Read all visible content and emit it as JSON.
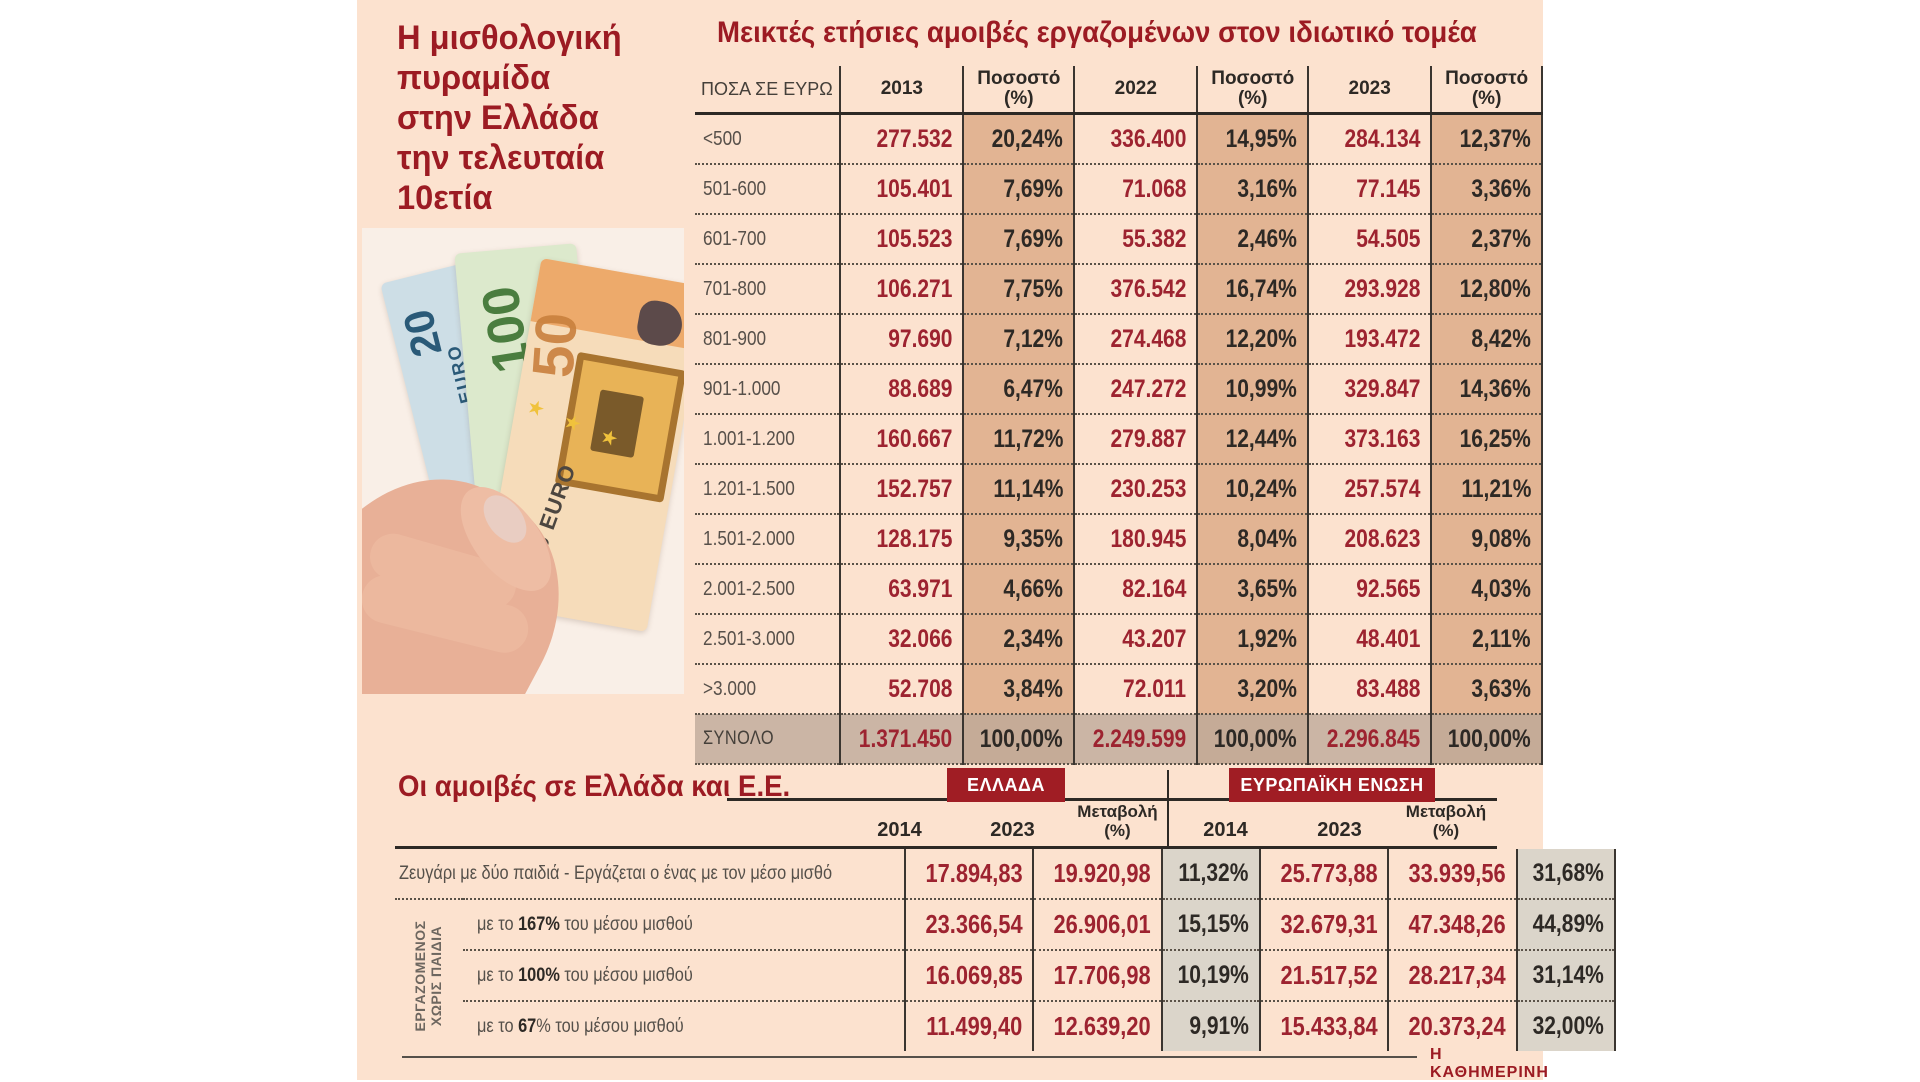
{
  "colors": {
    "page_background": "#ffffff",
    "panel_background": "#fce2cf",
    "accent_red": "#9c1b23",
    "value_red": "#9d2330",
    "tan_percent_column": "#e2b493",
    "total_row": "#cbb5a5",
    "change_column_gray": "#dbd5ca",
    "text_dark": "#2d2925",
    "text_gray": "#57504a"
  },
  "left_panel": {
    "title": "Η μισθολογική\nπυραμίδα\nστην Ελλάδα\nτην τελευταία\n10ετία",
    "photo": {
      "description": "hand holding 20, 100 and 50 euro banknotes",
      "notes": [
        {
          "value": "20",
          "currency": "EURO"
        },
        {
          "value": "100",
          "currency": ""
        },
        {
          "value": "50",
          "currency": "50 EURO"
        }
      ],
      "stars": "★ ★ ★"
    }
  },
  "gross_table": {
    "title": "Μεικτές ετήσιες αμοιβές εργαζομένων στον ιδιωτικό τομέα",
    "headers": [
      "ΠΟΣΑ ΣΕ ΕΥΡΩ",
      "2013",
      "Ποσοστό\n(%)",
      "2022",
      "Ποσοστό\n(%)",
      "2023",
      "Ποσοστό\n(%)"
    ],
    "rows": [
      {
        "range": "<500",
        "cells": [
          "277.532",
          "20,24%",
          "336.400",
          "14,95%",
          "284.134",
          "12,37%"
        ]
      },
      {
        "range": "501-600",
        "cells": [
          "105.401",
          "7,69%",
          "71.068",
          "3,16%",
          "77.145",
          "3,36%"
        ]
      },
      {
        "range": "601-700",
        "cells": [
          "105.523",
          "7,69%",
          "55.382",
          "2,46%",
          "54.505",
          "2,37%"
        ]
      },
      {
        "range": "701-800",
        "cells": [
          "106.271",
          "7,75%",
          "376.542",
          "16,74%",
          "293.928",
          "12,80%"
        ]
      },
      {
        "range": "801-900",
        "cells": [
          "97.690",
          "7,12%",
          "274.468",
          "12,20%",
          "193.472",
          "8,42%"
        ]
      },
      {
        "range": "901-1.000",
        "cells": [
          "88.689",
          "6,47%",
          "247.272",
          "10,99%",
          "329.847",
          "14,36%"
        ]
      },
      {
        "range": "1.001-1.200",
        "cells": [
          "160.667",
          "11,72%",
          "279.887",
          "12,44%",
          "373.163",
          "16,25%"
        ]
      },
      {
        "range": "1.201-1.500",
        "cells": [
          "152.757",
          "11,14%",
          "230.253",
          "10,24%",
          "257.574",
          "11,21%"
        ]
      },
      {
        "range": "1.501-2.000",
        "cells": [
          "128.175",
          "9,35%",
          "180.945",
          "8,04%",
          "208.623",
          "9,08%"
        ]
      },
      {
        "range": "2.001-2.500",
        "cells": [
          "63.971",
          "4,66%",
          "82.164",
          "3,65%",
          "92.565",
          "4,03%"
        ]
      },
      {
        "range": "2.501-3.000",
        "cells": [
          "32.066",
          "2,34%",
          "43.207",
          "1,92%",
          "48.401",
          "2,11%"
        ]
      },
      {
        "range": ">3.000",
        "cells": [
          "52.708",
          "3,84%",
          "72.011",
          "3,20%",
          "83.488",
          "3,63%"
        ]
      }
    ],
    "total": {
      "range": "ΣΥΝΟΛΟ",
      "cells": [
        "1.371.450",
        "100,00%",
        "2.249.599",
        "100,00%",
        "2.296.845",
        "100,00%"
      ]
    }
  },
  "comparison_table": {
    "title": "Οι αμοιβές σε Ελλάδα και Ε.Ε.",
    "groups": [
      "ΕΛΛΑΔΑ",
      "ΕΥΡΩΠΑΪΚΗ ΕΝΩΣΗ"
    ],
    "col_headers": [
      "2014",
      "2023",
      "Μεταβολή\n(%)",
      "2014",
      "2023",
      "Μεταβολή\n(%)"
    ],
    "side_label": "ΕΡΓΑΖΟΜΕΝΟΣ\nΧΩΡΙΣ ΠΑΙΔΙΑ",
    "rows": [
      {
        "label_pre": "Ζευγάρι με δύο παιδιά - Εργάζεται ο ένας με τον μέσο μισθό",
        "label_bold": "",
        "label_post": "",
        "cells": [
          "17.894,83",
          "19.920,98",
          "11,32%",
          "25.773,88",
          "33.939,56",
          "31,68%"
        ]
      },
      {
        "label_pre": "με το ",
        "label_bold": "167%",
        "label_post": " του μέσου μισθού",
        "cells": [
          "23.366,54",
          "26.906,01",
          "15,15%",
          "32.679,31",
          "47.348,26",
          "44,89%"
        ]
      },
      {
        "label_pre": "με το ",
        "label_bold": "100%",
        "label_post": " του μέσου μισθού",
        "cells": [
          "16.069,85",
          "17.706,98",
          "10,19%",
          "21.517,52",
          "28.217,34",
          "31,14%"
        ]
      },
      {
        "label_pre": "με το ",
        "label_bold": "67",
        "label_post": "% του μέσου μισθού",
        "cells": [
          "11.499,40",
          "12.639,20",
          "9,91%",
          "15.433,84",
          "20.373,24",
          "32,00%"
        ]
      }
    ]
  },
  "footer": {
    "credit": "Η ΚΑΘΗΜΕΡΙΝΗ"
  },
  "chart_data": [
    {
      "type": "table",
      "title": "Μεικτές ετήσιες αμοιβές εργαζομένων στον ιδιωτικό τομέα",
      "columns": [
        "ΠΟΣΑ ΣΕ ΕΥΡΩ",
        "2013",
        "Ποσοστό (%)",
        "2022",
        "Ποσοστό (%)",
        "2023",
        "Ποσοστό (%)"
      ],
      "rows": [
        [
          "<500",
          "277.532",
          "20,24%",
          "336.400",
          "14,95%",
          "284.134",
          "12,37%"
        ],
        [
          "501-600",
          "105.401",
          "7,69%",
          "71.068",
          "3,16%",
          "77.145",
          "3,36%"
        ],
        [
          "601-700",
          "105.523",
          "7,69%",
          "55.382",
          "2,46%",
          "54.505",
          "2,37%"
        ],
        [
          "701-800",
          "106.271",
          "7,75%",
          "376.542",
          "16,74%",
          "293.928",
          "12,80%"
        ],
        [
          "801-900",
          "97.690",
          "7,12%",
          "274.468",
          "12,20%",
          "193.472",
          "8,42%"
        ],
        [
          "901-1.000",
          "88.689",
          "6,47%",
          "247.272",
          "10,99%",
          "329.847",
          "14,36%"
        ],
        [
          "1.001-1.200",
          "160.667",
          "11,72%",
          "279.887",
          "12,44%",
          "373.163",
          "16,25%"
        ],
        [
          "1.201-1.500",
          "152.757",
          "11,14%",
          "230.253",
          "10,24%",
          "257.574",
          "11,21%"
        ],
        [
          "1.501-2.000",
          "128.175",
          "9,35%",
          "180.945",
          "8,04%",
          "208.623",
          "9,08%"
        ],
        [
          "2.001-2.500",
          "63.971",
          "4,66%",
          "82.164",
          "3,65%",
          "92.565",
          "4,03%"
        ],
        [
          "2.501-3.000",
          "32.066",
          "2,34%",
          "43.207",
          "1,92%",
          "48.401",
          "2,11%"
        ],
        [
          ">3.000",
          "52.708",
          "3,84%",
          "72.011",
          "3,20%",
          "83.488",
          "3,63%"
        ],
        [
          "ΣΥΝΟΛΟ",
          "1.371.450",
          "100,00%",
          "2.249.599",
          "100,00%",
          "2.296.845",
          "100,00%"
        ]
      ]
    },
    {
      "type": "table",
      "title": "Οι αμοιβές σε Ελλάδα και Ε.Ε.",
      "column_groups": [
        "ΕΛΛΑΔΑ",
        "ΕΥΡΩΠΑΪΚΗ ΕΝΩΣΗ"
      ],
      "columns": [
        "2014",
        "2023",
        "Μεταβολή (%)",
        "2014",
        "2023",
        "Μεταβολή (%)"
      ],
      "rows": [
        [
          "Ζευγάρι με δύο παιδιά - Εργάζεται ο ένας με τον μέσο μισθό",
          "17.894,83",
          "19.920,98",
          "11,32%",
          "25.773,88",
          "33.939,56",
          "31,68%"
        ],
        [
          "Εργαζόμενος χωρίς παιδιά - με το 167% του μέσου μισθού",
          "23.366,54",
          "26.906,01",
          "15,15%",
          "32.679,31",
          "47.348,26",
          "44,89%"
        ],
        [
          "Εργαζόμενος χωρίς παιδιά - με το 100% του μέσου μισθού",
          "16.069,85",
          "17.706,98",
          "10,19%",
          "21.517,52",
          "28.217,34",
          "31,14%"
        ],
        [
          "Εργαζόμενος χωρίς παιδιά - με το 67% του μέσου μισθού",
          "11.499,40",
          "12.639,20",
          "9,91%",
          "15.433,84",
          "20.373,24",
          "32,00%"
        ]
      ]
    }
  ]
}
